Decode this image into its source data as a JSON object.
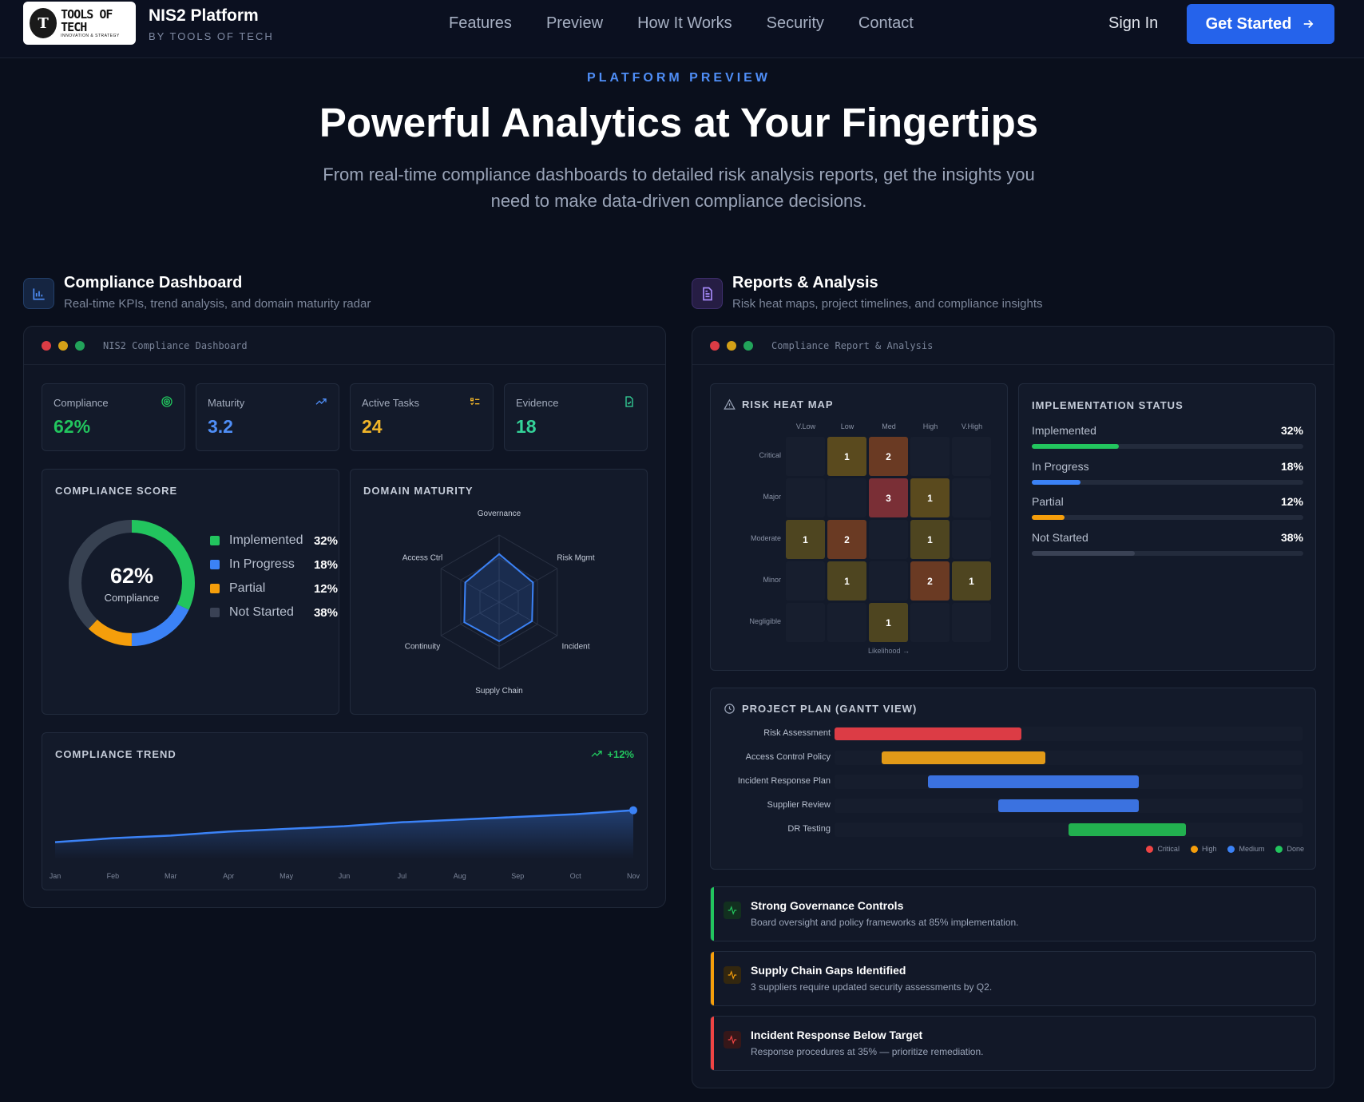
{
  "nav": {
    "logo_text": "TOOLS OF TECH",
    "logo_tagline": "INNOVATION & STRATEGY",
    "brand_title": "NIS2 Platform",
    "brand_sub": "BY TOOLS OF TECH",
    "links": [
      "Features",
      "Preview",
      "How It Works",
      "Security",
      "Contact"
    ],
    "sign_in": "Sign In",
    "cta": "Get Started"
  },
  "hero": {
    "eyebrow": "PLATFORM PREVIEW",
    "title": "Powerful Analytics at Your Fingertips",
    "subtitle": "From real-time compliance dashboards to detailed risk analysis reports, get the insights you need to make data-driven compliance decisions."
  },
  "dashboard": {
    "title": "Compliance Dashboard",
    "subtitle": "Real-time KPIs, trend analysis, and domain maturity radar",
    "window_title": "NIS2 Compliance Dashboard",
    "kpis": [
      {
        "label": "Compliance",
        "value": "62%",
        "color": "#22c55e",
        "icon": "target-icon"
      },
      {
        "label": "Maturity",
        "value": "3.2",
        "color": "#4f8ef7",
        "icon": "trending-up-icon"
      },
      {
        "label": "Active Tasks",
        "value": "24",
        "color": "#f0b429",
        "icon": "list-check-icon"
      },
      {
        "label": "Evidence",
        "value": "18",
        "color": "#34d399",
        "icon": "file-check-icon"
      }
    ],
    "score": {
      "heading": "COMPLIANCE SCORE",
      "center_value": "62%",
      "center_label": "Compliance",
      "legend": [
        {
          "label": "Implemented",
          "value": "32%",
          "pct": 32,
          "color": "#22c55e"
        },
        {
          "label": "In Progress",
          "value": "18%",
          "pct": 18,
          "color": "#3b82f6"
        },
        {
          "label": "Partial",
          "value": "12%",
          "pct": 12,
          "color": "#f59e0b"
        },
        {
          "label": "Not Started",
          "value": "38%",
          "pct": 38,
          "color": "#374151"
        }
      ]
    },
    "maturity": {
      "heading": "DOMAIN MATURITY",
      "axes": [
        "Governance",
        "Risk Mgmt",
        "Incident",
        "Supply Chain",
        "Continuity",
        "Access Ctrl"
      ],
      "values": [
        4.3,
        3.5,
        3.4,
        3.5,
        3.6,
        3.5
      ],
      "max": 6
    },
    "trend": {
      "heading": "COMPLIANCE TREND",
      "delta": "+12%",
      "months": [
        "Jan",
        "Feb",
        "Mar",
        "Apr",
        "May",
        "Jun",
        "Jul",
        "Aug",
        "Sep",
        "Oct",
        "Nov"
      ],
      "values": [
        50,
        51.5,
        52.5,
        54,
        55,
        56,
        57.5,
        58.5,
        59.5,
        60.5,
        62
      ],
      "ylim": [
        40,
        70
      ]
    }
  },
  "reports": {
    "title": "Reports & Analysis",
    "subtitle": "Risk heat maps, project timelines, and compliance insights",
    "window_title": "Compliance Report & Analysis",
    "heatmap": {
      "heading": "RISK HEAT MAP",
      "cols": [
        "V.Low",
        "Low",
        "Med",
        "High",
        "V.High"
      ],
      "rows": [
        "Critical",
        "Major",
        "Moderate",
        "Minor",
        "Negligible"
      ],
      "cells": [
        [
          "",
          "1",
          "2",
          "",
          ""
        ],
        [
          "",
          "",
          "3",
          "1",
          ""
        ],
        [
          "1",
          "2",
          "",
          "1",
          ""
        ],
        [
          "",
          "1",
          "",
          "2",
          "1"
        ],
        [
          "",
          "",
          "1",
          "",
          ""
        ]
      ],
      "cell_colors": [
        [
          "",
          "#5a4a1e",
          "#6a3a23",
          "",
          ""
        ],
        [
          "",
          "",
          "#7a2f36",
          "#5a4a1e",
          ""
        ],
        [
          "#4e4520",
          "#6a3a23",
          "",
          "#4e4520",
          ""
        ],
        [
          "",
          "#4e4520",
          "",
          "#6a3a23",
          "#4e4520"
        ],
        [
          "",
          "",
          "#4e4520",
          "",
          ""
        ]
      ],
      "x_label": "Likelihood →"
    },
    "implementation": {
      "heading": "IMPLEMENTATION STATUS",
      "items": [
        {
          "label": "Implemented",
          "value": "32%",
          "pct": 32,
          "color": "#22c55e"
        },
        {
          "label": "In Progress",
          "value": "18%",
          "pct": 18,
          "color": "#3b82f6"
        },
        {
          "label": "Partial",
          "value": "12%",
          "pct": 12,
          "color": "#f59e0b"
        },
        {
          "label": "Not Started",
          "value": "38%",
          "pct": 38,
          "color": "#3a4255"
        }
      ]
    },
    "gantt": {
      "heading": "PROJECT PLAN (GANTT VIEW)",
      "tasks": [
        {
          "name": "Risk Assessment",
          "start": 0,
          "end": 40,
          "color": "#dc3c45"
        },
        {
          "name": "Access Control Policy",
          "start": 10,
          "end": 45,
          "color": "#e29a18"
        },
        {
          "name": "Incident Response Plan",
          "start": 20,
          "end": 65,
          "color": "#3b72e0"
        },
        {
          "name": "Supplier Review",
          "start": 35,
          "end": 65,
          "color": "#3b72e0"
        },
        {
          "name": "DR Testing",
          "start": 50,
          "end": 75,
          "color": "#22b04f"
        }
      ],
      "legend": [
        {
          "label": "Critical",
          "color": "#ef4444"
        },
        {
          "label": "High",
          "color": "#f59e0b"
        },
        {
          "label": "Medium",
          "color": "#3b82f6"
        },
        {
          "label": "Done",
          "color": "#22c55e"
        }
      ]
    },
    "insights": [
      {
        "title": "Strong Governance Controls",
        "desc": "Board oversight and policy frameworks at 85% implementation.",
        "color": "#22c55e",
        "icon": "activity-icon"
      },
      {
        "title": "Supply Chain Gaps Identified",
        "desc": "3 suppliers require updated security assessments by Q2.",
        "color": "#f59e0b",
        "icon": "activity-icon"
      },
      {
        "title": "Incident Response Below Target",
        "desc": "Response procedures at 35% — prioritize remediation.",
        "color": "#ef4444",
        "icon": "activity-icon"
      }
    ]
  }
}
